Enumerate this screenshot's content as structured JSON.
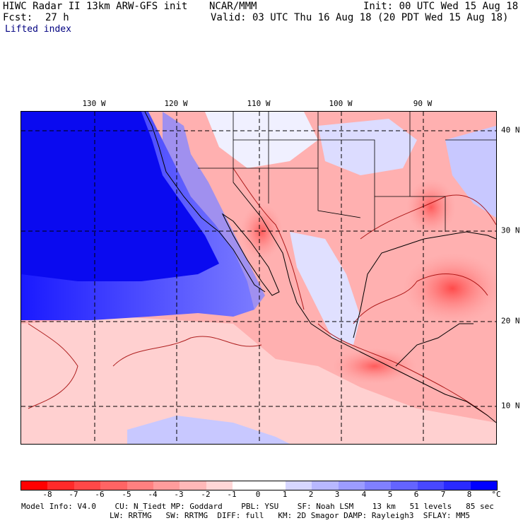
{
  "header": {
    "model": "HIWC Radar II 13km ARW-GFS init",
    "org": "NCAR/MMM",
    "init": "Init: 00 UTC Wed 15 Aug 18",
    "fcst_label": "Fcst:",
    "fcst_value": "27 h",
    "valid": "Valid: 03 UTC Thu 16 Aug 18 (20 PDT Wed 15 Aug 18)",
    "variable": "Lifted index"
  },
  "map": {
    "lon_labels": [
      "130 W",
      "120 W",
      "110 W",
      "100 W",
      "90 W"
    ],
    "lat_labels": [
      "40 N",
      "30 N",
      "20 N",
      "10 N"
    ]
  },
  "colorbar": {
    "ticks": [
      "-8",
      "-7",
      "-6",
      "-5",
      "-4",
      "-3",
      "-2",
      "-1",
      "0",
      "1",
      "2",
      "3",
      "4",
      "5",
      "6",
      "7",
      "8"
    ],
    "unit": "°C",
    "colors": [
      "#ff0000",
      "#ff2a2a",
      "#ff4848",
      "#ff6464",
      "#ff8080",
      "#ff9c9c",
      "#ffb8b8",
      "#ffd6d6",
      "#ffffff",
      "#ffffff",
      "#d6d6ff",
      "#b8b8ff",
      "#9c9cff",
      "#8080ff",
      "#6464ff",
      "#4848ff",
      "#2a2aff",
      "#0000ff"
    ]
  },
  "footer": {
    "line1": "Model Info: V4.0    CU: N_Tiedt MP: Goddard    PBL: YSU    SF: Noah LSM    13 km   51 levels   85 sec",
    "line2": "LW: RRTMG   SW: RRTMG  DIFF: full   KM: 2D Smagor DAMP: Rayleigh3  SFLAY: MM5"
  }
}
